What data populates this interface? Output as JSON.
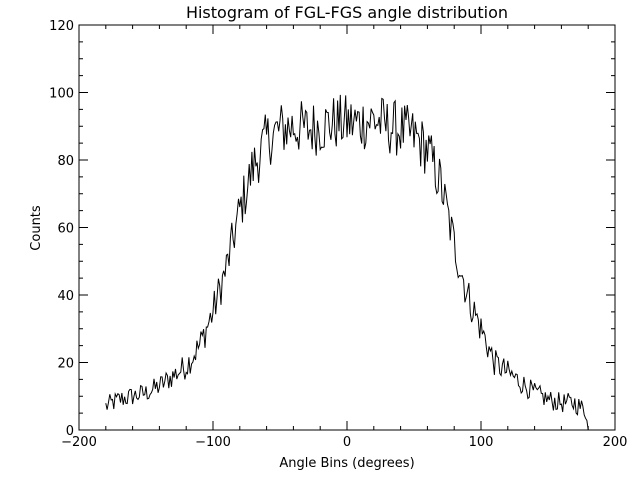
{
  "chart_data": {
    "type": "line",
    "title": "Histogram of FGL-FGS angle distribution",
    "xlabel": "Angle Bins (degrees)",
    "ylabel": "Counts",
    "xlim": [
      -200,
      200
    ],
    "ylim": [
      0,
      120
    ],
    "xticks": [
      -200,
      -100,
      0,
      100,
      200
    ],
    "xtick_labels": [
      "−200",
      "−100",
      "0",
      "100",
      "200"
    ],
    "yticks": [
      0,
      20,
      40,
      60,
      80,
      100,
      120
    ],
    "ytick_labels": [
      "0",
      "20",
      "40",
      "60",
      "80",
      "100",
      "120"
    ],
    "grid": false,
    "legend": "none",
    "line_color": "#000000",
    "series": [
      {
        "x": [
          -180,
          -170,
          -160,
          -150,
          -140,
          -130,
          -120,
          -110,
          -100,
          -90,
          -80,
          -70,
          -60,
          -50,
          -40,
          -30,
          -20,
          -10,
          0,
          10,
          20,
          30,
          40,
          50,
          60,
          70,
          80,
          90,
          100,
          110,
          120,
          130,
          140,
          150,
          160,
          170,
          180
        ],
        "y": [
          7,
          9,
          10,
          11,
          13,
          16,
          19,
          25,
          35,
          48,
          65,
          78,
          86,
          89,
          90,
          89,
          90,
          91,
          91,
          91,
          92,
          90,
          89,
          87,
          83,
          73,
          55,
          40,
          30,
          20,
          17,
          14,
          11,
          9,
          8,
          8,
          5
        ]
      }
    ]
  }
}
